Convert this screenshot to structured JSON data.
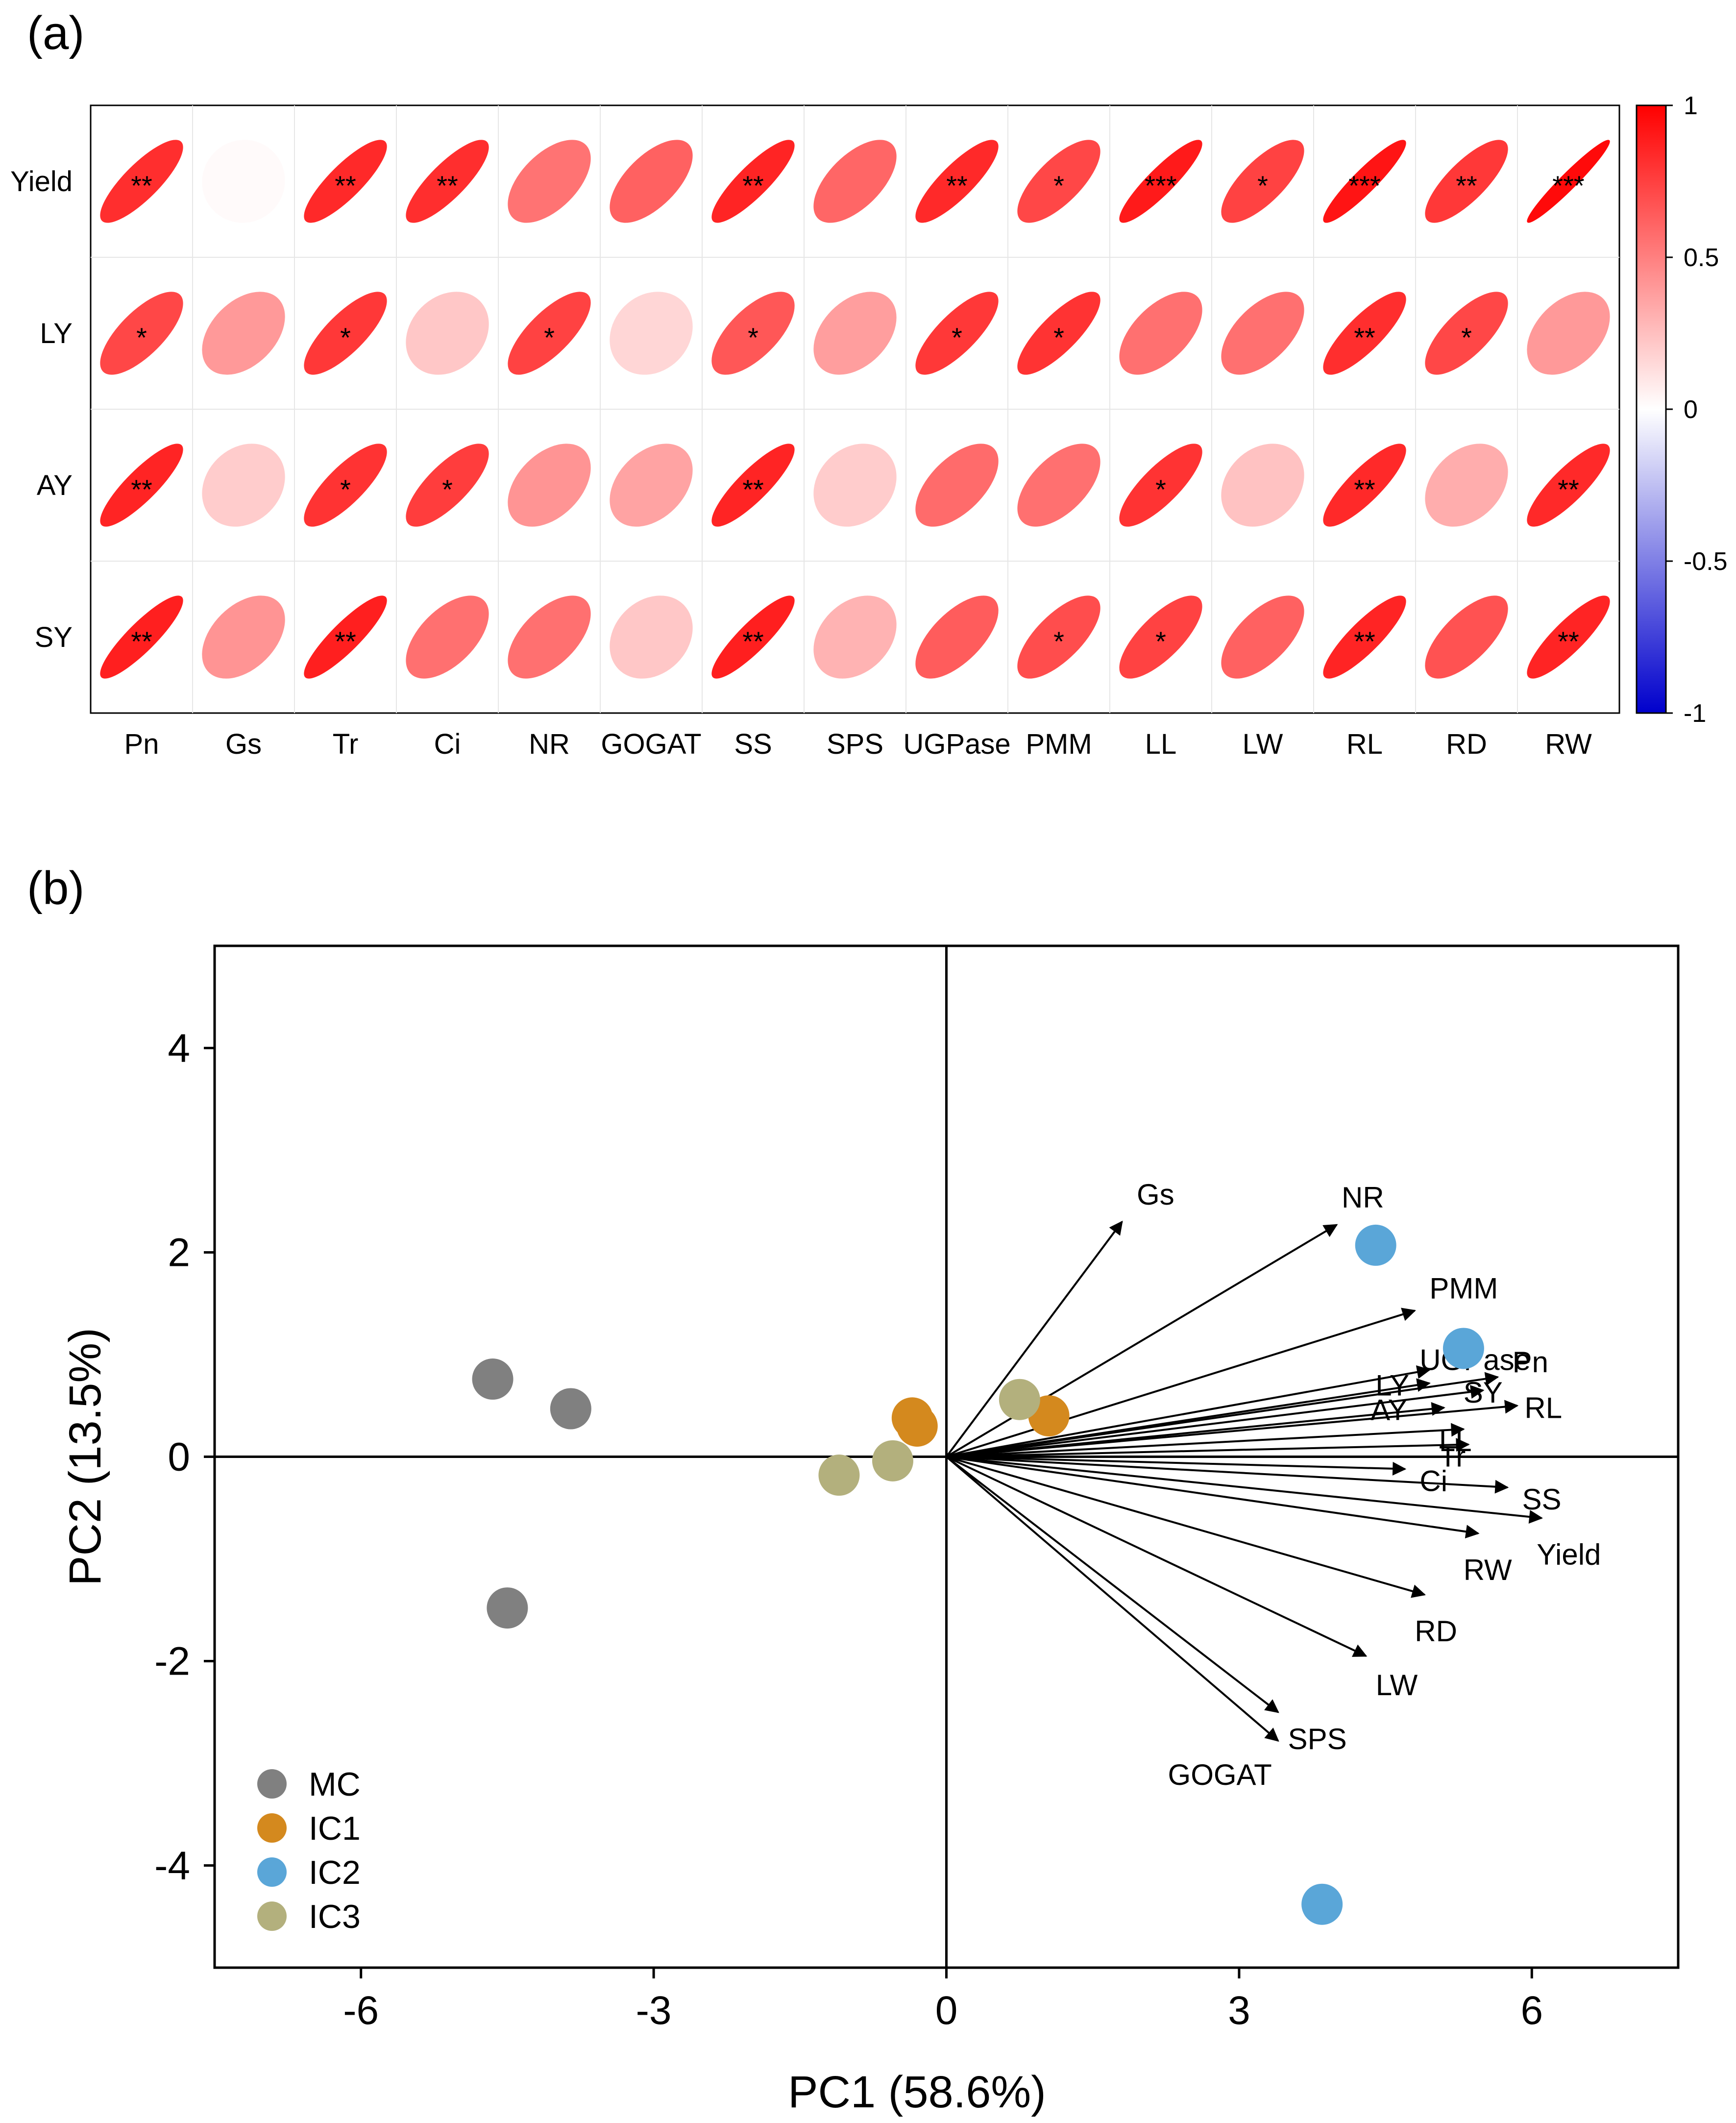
{
  "panel_a": {
    "label": "(a)",
    "chart_data": {
      "type": "heatmap",
      "rows": [
        "Yield",
        "LY",
        "AY",
        "SY"
      ],
      "columns": [
        "Pn",
        "Gs",
        "Tr",
        "Ci",
        "NR",
        "GOGAT",
        "SS",
        "SPS",
        "UGPase",
        "PMM",
        "LL",
        "LW",
        "RL",
        "RD",
        "RW"
      ],
      "values": [
        [
          0.82,
          0.02,
          0.84,
          0.82,
          0.55,
          0.62,
          0.86,
          0.6,
          0.84,
          0.72,
          0.9,
          0.74,
          0.92,
          0.78,
          0.96
        ],
        [
          0.72,
          0.4,
          0.78,
          0.22,
          0.74,
          0.16,
          0.66,
          0.38,
          0.78,
          0.8,
          0.56,
          0.56,
          0.82,
          0.72,
          0.4
        ],
        [
          0.86,
          0.2,
          0.8,
          0.76,
          0.42,
          0.36,
          0.86,
          0.2,
          0.58,
          0.56,
          0.8,
          0.24,
          0.84,
          0.32,
          0.84
        ],
        [
          0.88,
          0.42,
          0.88,
          0.56,
          0.56,
          0.22,
          0.88,
          0.3,
          0.64,
          0.7,
          0.74,
          0.62,
          0.86,
          0.68,
          0.86
        ]
      ],
      "significance": [
        [
          "**",
          "",
          "**",
          "**",
          "",
          "",
          "**",
          "",
          "**",
          "*",
          "***",
          "*",
          "***",
          "**",
          "***"
        ],
        [
          "*",
          "",
          "*",
          "",
          "*",
          "",
          "*",
          "",
          "*",
          "*",
          "",
          "",
          "**",
          "*",
          ""
        ],
        [
          "**",
          "",
          "*",
          "*",
          "",
          "",
          "**",
          "",
          "",
          "",
          "*",
          "",
          "**",
          "",
          "**"
        ],
        [
          "**",
          "",
          "**",
          "",
          "",
          "",
          "**",
          "",
          "",
          "*",
          "*",
          "",
          "**",
          "",
          "**"
        ]
      ],
      "colorbar": {
        "min": -1,
        "max": 1,
        "ticks": [
          "1",
          "0.5",
          "0",
          "-0.5",
          "-1"
        ],
        "colors": [
          "#0000cc",
          "#ffffff",
          "#ff0000"
        ]
      }
    }
  },
  "panel_b": {
    "label": "(b)",
    "chart_data": {
      "type": "scatter",
      "xlabel": "PC1 (58.6%)",
      "ylabel": "PC2 (13.5%)",
      "xlim": [
        -7.5,
        7.5
      ],
      "ylim": [
        -5,
        5
      ],
      "xticks": [
        "-6",
        "-3",
        "0",
        "3",
        "6"
      ],
      "yticks": [
        "4",
        "2",
        "0",
        "-2",
        "-4"
      ],
      "series": [
        {
          "name": "MC",
          "color": "#808080",
          "x": [
            -4.65,
            -3.85,
            -4.5
          ],
          "y": [
            0.76,
            0.47,
            -1.48
          ]
        },
        {
          "name": "IC1",
          "color": "#d4891e",
          "x": [
            -0.35,
            -0.3,
            1.05
          ],
          "y": [
            0.38,
            0.3,
            0.4
          ]
        },
        {
          "name": "IC2",
          "color": "#5aa6d8",
          "x": [
            4.4,
            5.3,
            3.85
          ],
          "y": [
            2.07,
            1.06,
            -4.38
          ]
        },
        {
          "name": "IC3",
          "color": "#b3b07d",
          "x": [
            0.75,
            -0.55,
            -1.1
          ],
          "y": [
            0.56,
            -0.04,
            -0.18
          ]
        }
      ],
      "loadings": [
        {
          "name": "Gs",
          "x": 1.8,
          "y": 2.3,
          "label": "Gs"
        },
        {
          "name": "NR",
          "x": 4.0,
          "y": 2.27,
          "label": "NR"
        },
        {
          "name": "PMM",
          "x": 4.8,
          "y": 1.43,
          "label": "PMM"
        },
        {
          "name": "UGPase",
          "x": 4.95,
          "y": 0.85,
          "label": "UGPase"
        },
        {
          "name": "Pn",
          "x": 5.65,
          "y": 0.78,
          "label": "Pn"
        },
        {
          "name": "LY",
          "x": 4.95,
          "y": 0.72,
          "label": "LY"
        },
        {
          "name": "SY",
          "x": 5.5,
          "y": 0.65,
          "label": "SY"
        },
        {
          "name": "RL",
          "x": 5.85,
          "y": 0.5,
          "label": "RL"
        },
        {
          "name": "AY",
          "x": 5.1,
          "y": 0.48,
          "label": "AY"
        },
        {
          "name": "LL",
          "x": 5.3,
          "y": 0.27,
          "label": "LL"
        },
        {
          "name": "Tr",
          "x": 5.35,
          "y": 0.12,
          "label": "Tr"
        },
        {
          "name": "Ci",
          "x": 4.7,
          "y": -0.12,
          "label": "Ci"
        },
        {
          "name": "SS",
          "x": 5.75,
          "y": -0.3,
          "label": "SS"
        },
        {
          "name": "Yield",
          "x": 6.1,
          "y": -0.6,
          "label": "Yield"
        },
        {
          "name": "RW",
          "x": 5.45,
          "y": -0.75,
          "label": "RW"
        },
        {
          "name": "RD",
          "x": 4.9,
          "y": -1.35,
          "label": "RD"
        },
        {
          "name": "LW",
          "x": 4.3,
          "y": -1.95,
          "label": "LW"
        },
        {
          "name": "SPS",
          "x": 3.4,
          "y": -2.5,
          "label": "SPS"
        },
        {
          "name": "GOGAT",
          "x": 3.4,
          "y": -2.78,
          "label": "GOGAT"
        }
      ]
    }
  }
}
